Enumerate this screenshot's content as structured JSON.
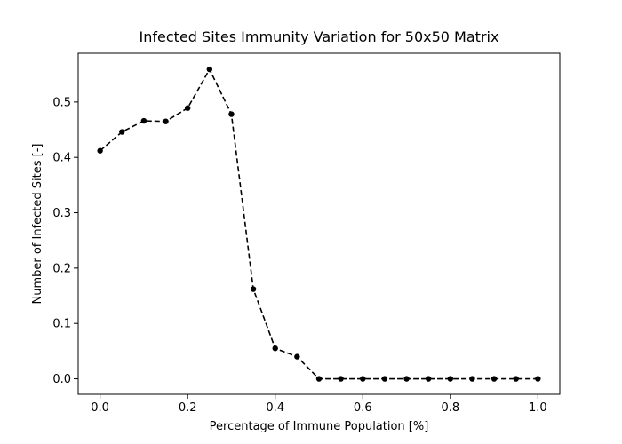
{
  "chart_data": {
    "type": "line",
    "title": "Infected Sites Immunity Variation for 50x50 Matrix",
    "xlabel": "Percentage of Immune Population [%]",
    "ylabel": "Number of Infected Sites [-]",
    "xlim": [
      -0.05,
      1.05
    ],
    "ylim": [
      -0.028,
      0.588
    ],
    "x_ticks": [
      0.0,
      0.2,
      0.4,
      0.6,
      0.8,
      1.0
    ],
    "x_tick_labels": [
      "0.0",
      "0.2",
      "0.4",
      "0.6",
      "0.8",
      "1.0"
    ],
    "y_ticks": [
      0.0,
      0.1,
      0.2,
      0.3,
      0.4,
      0.5
    ],
    "y_tick_labels": [
      "0.0",
      "0.1",
      "0.2",
      "0.3",
      "0.4",
      "0.5"
    ],
    "grid": false,
    "line_style": "dashed",
    "marker": "circle",
    "color": "#000000",
    "series": [
      {
        "x": [
          0.0,
          0.05,
          0.1,
          0.15,
          0.2,
          0.25,
          0.3,
          0.35,
          0.4,
          0.45,
          0.5,
          0.55,
          0.6,
          0.65,
          0.7,
          0.75,
          0.8,
          0.85,
          0.9,
          0.95,
          1.0
        ],
        "y": [
          0.412,
          0.446,
          0.466,
          0.465,
          0.489,
          0.559,
          0.478,
          0.162,
          0.055,
          0.04,
          0.0,
          0.0,
          0.0,
          0.0,
          0.0,
          0.0,
          0.0,
          0.0,
          0.0,
          0.0,
          0.0
        ]
      }
    ]
  }
}
